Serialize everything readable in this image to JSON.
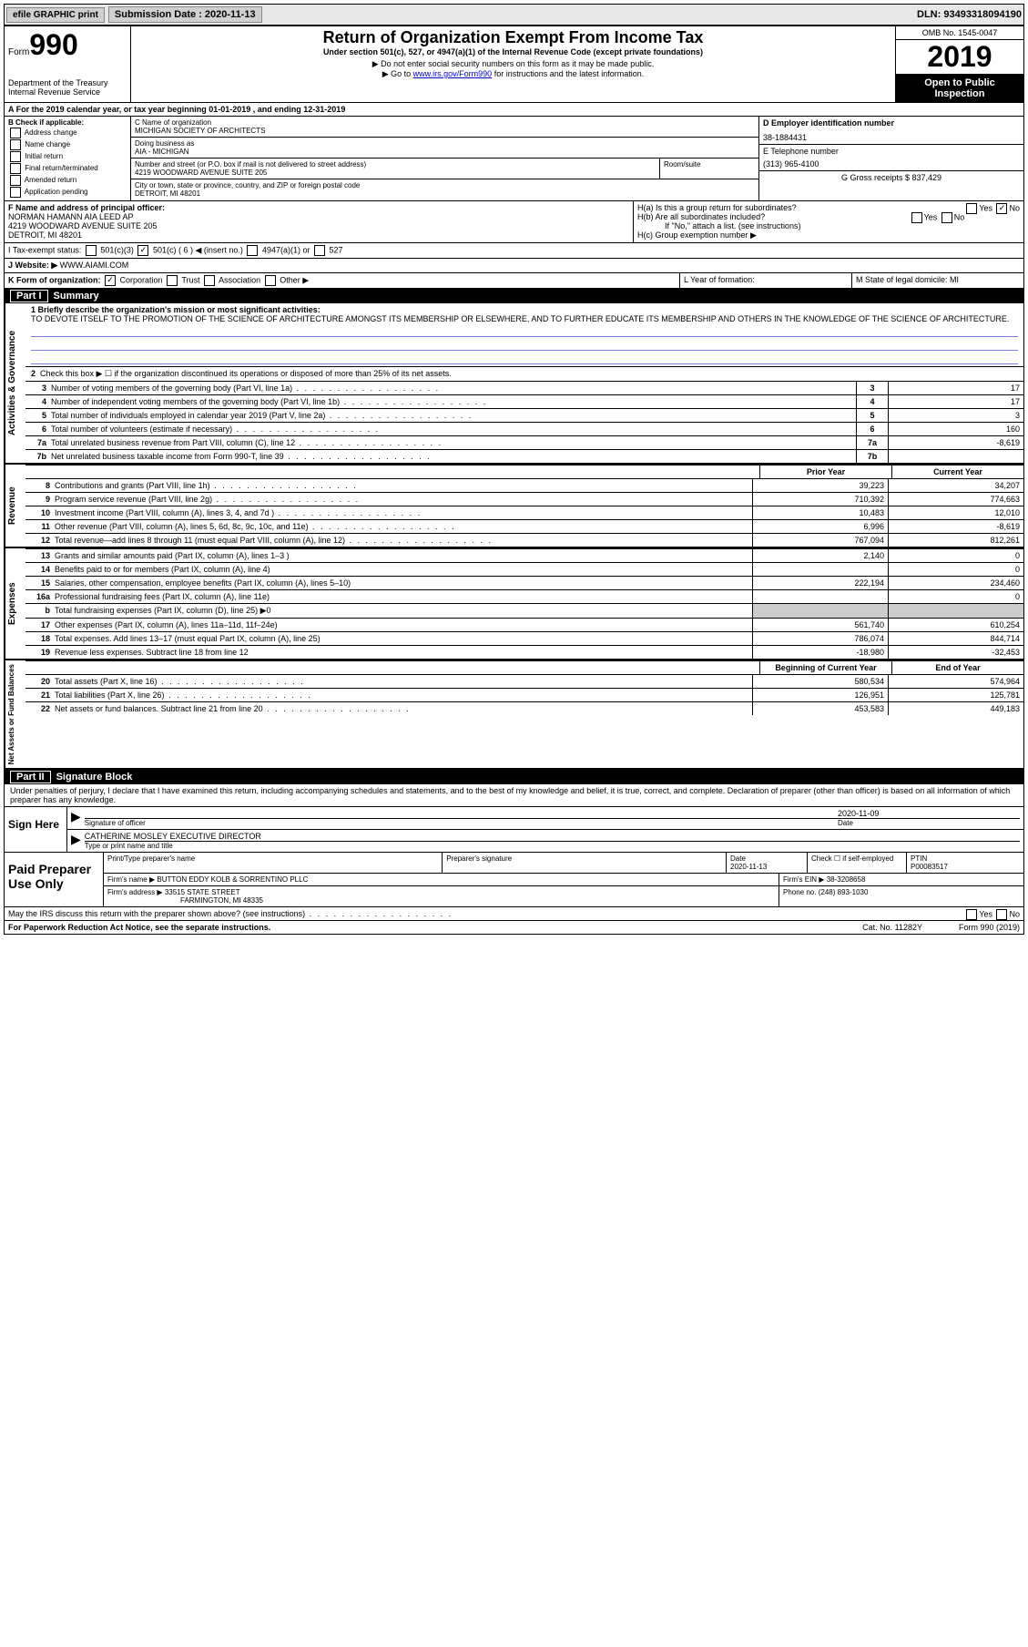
{
  "topbar": {
    "efile_label": "efile GRAPHIC print",
    "submission_label": "Submission Date : 2020-11-13",
    "dln_label": "DLN: 93493318094190"
  },
  "header": {
    "form_prefix": "Form",
    "form_number": "990",
    "dept": "Department of the Treasury\nInternal Revenue Service",
    "title": "Return of Organization Exempt From Income Tax",
    "subtitle": "Under section 501(c), 527, or 4947(a)(1) of the Internal Revenue Code (except private foundations)",
    "note1": "▶ Do not enter social security numbers on this form as it may be made public.",
    "note2_pre": "▶ Go to ",
    "note2_link": "www.irs.gov/Form990",
    "note2_post": " for instructions and the latest information.",
    "omb": "OMB No. 1545-0047",
    "year": "2019",
    "pub": "Open to Public Inspection"
  },
  "line_a": "A For the 2019 calendar year, or tax year beginning 01-01-2019    , and ending 12-31-2019",
  "col_b": {
    "header": "B Check if applicable:",
    "items": [
      "Address change",
      "Name change",
      "Initial return",
      "Final return/terminated",
      "Amended return",
      "Application pending"
    ]
  },
  "col_c": {
    "name_label": "C Name of organization",
    "name": "MICHIGAN SOCIETY OF ARCHITECTS",
    "dba_label": "Doing business as",
    "dba": "AIA - MICHIGAN",
    "addr_label": "Number and street (or P.O. box if mail is not delivered to street address)",
    "room_label": "Room/suite",
    "addr": "4219 WOODWARD AVENUE SUITE 205",
    "city_label": "City or town, state or province, country, and ZIP or foreign postal code",
    "city": "DETROIT, MI  48201"
  },
  "col_de": {
    "d_label": "D Employer identification number",
    "d_val": "38-1884431",
    "e_label": "E Telephone number",
    "e_val": "(313) 965-4100",
    "g_label": "G Gross receipts $ 837,429"
  },
  "section_f": {
    "label": "F  Name and address of principal officer:",
    "name": "NORMAN HAMANN AIA LEED AP",
    "addr1": "4219 WOODWARD AVENUE SUITE 205",
    "addr2": "DETROIT, MI  48201"
  },
  "section_h": {
    "ha": "H(a)  Is this a group return for subordinates?",
    "hb": "H(b)  Are all subordinates included?",
    "hb_note": "If \"No,\" attach a list. (see instructions)",
    "hc": "H(c)  Group exemption number ▶"
  },
  "line_i": {
    "label": "I    Tax-exempt status:",
    "o1": "501(c)(3)",
    "o2_pre": "501(c) ( 6 ) ◀ (insert no.)",
    "o3": "4947(a)(1) or",
    "o4": "527"
  },
  "line_j": {
    "label": "J    Website: ▶",
    "val": "WWW.AIAMI.COM"
  },
  "line_k": {
    "label": "K Form of organization:",
    "o1": "Corporation",
    "o2": "Trust",
    "o3": "Association",
    "o4": "Other ▶"
  },
  "line_l": {
    "label": "L Year of formation:"
  },
  "line_m": {
    "label": "M State of legal domicile: MI"
  },
  "part1": {
    "header_tab": "Part I",
    "header": "Summary",
    "side_ag": "Activities & Governance",
    "side_rev": "Revenue",
    "side_exp": "Expenses",
    "side_na": "Net Assets or Fund Balances",
    "line1_label": "1  Briefly describe the organization's mission or most significant activities:",
    "line1_text": "TO DEVOTE ITSELF TO THE PROMOTION OF THE SCIENCE OF ARCHITECTURE AMONGST ITS MEMBERSHIP OR ELSEWHERE, AND TO FURTHER EDUCATE ITS MEMBERSHIP AND OTHERS IN THE KNOWLEDGE OF THE SCIENCE OF ARCHITECTURE.",
    "line2": "Check this box ▶ ☐  if the organization discontinued its operations or disposed of more than 25% of its net assets.",
    "rows": [
      {
        "n": "3",
        "t": "Number of voting members of the governing body (Part VI, line 1a)",
        "v": "17"
      },
      {
        "n": "4",
        "t": "Number of independent voting members of the governing body (Part VI, line 1b)",
        "v": "17"
      },
      {
        "n": "5",
        "t": "Total number of individuals employed in calendar year 2019 (Part V, line 2a)",
        "v": "3"
      },
      {
        "n": "6",
        "t": "Total number of volunteers (estimate if necessary)",
        "v": "160"
      },
      {
        "n": "7a",
        "t": "Total unrelated business revenue from Part VIII, column (C), line 12",
        "v": "-8,619"
      },
      {
        "n": "7b",
        "t": "Net unrelated business taxable income from Form 990-T, line 39",
        "v": ""
      }
    ],
    "py_header": "Prior Year",
    "cy_header": "Current Year",
    "rev_rows": [
      {
        "n": "8",
        "t": "Contributions and grants (Part VIII, line 1h)",
        "py": "39,223",
        "cy": "34,207"
      },
      {
        "n": "9",
        "t": "Program service revenue (Part VIII, line 2g)",
        "py": "710,392",
        "cy": "774,663"
      },
      {
        "n": "10",
        "t": "Investment income (Part VIII, column (A), lines 3, 4, and 7d )",
        "py": "10,483",
        "cy": "12,010"
      },
      {
        "n": "11",
        "t": "Other revenue (Part VIII, column (A), lines 5, 6d, 8c, 9c, 10c, and 11e)",
        "py": "6,996",
        "cy": "-8,619"
      },
      {
        "n": "12",
        "t": "Total revenue—add lines 8 through 11 (must equal Part VIII, column (A), line 12)",
        "py": "767,094",
        "cy": "812,261"
      }
    ],
    "exp_rows": [
      {
        "n": "13",
        "t": "Grants and similar amounts paid (Part IX, column (A), lines 1–3 )",
        "py": "2,140",
        "cy": "0"
      },
      {
        "n": "14",
        "t": "Benefits paid to or for members (Part IX, column (A), line 4)",
        "py": "",
        "cy": "0"
      },
      {
        "n": "15",
        "t": "Salaries, other compensation, employee benefits (Part IX, column (A), lines 5–10)",
        "py": "222,194",
        "cy": "234,460"
      },
      {
        "n": "16a",
        "t": "Professional fundraising fees (Part IX, column (A), line 11e)",
        "py": "",
        "cy": "0"
      },
      {
        "n": "b",
        "t": "Total fundraising expenses (Part IX, column (D), line 25) ▶0",
        "py": "",
        "cy": "",
        "shade": true
      },
      {
        "n": "17",
        "t": "Other expenses (Part IX, column (A), lines 11a–11d, 11f–24e)",
        "py": "561,740",
        "cy": "610,254"
      },
      {
        "n": "18",
        "t": "Total expenses. Add lines 13–17 (must equal Part IX, column (A), line 25)",
        "py": "786,074",
        "cy": "844,714"
      },
      {
        "n": "19",
        "t": "Revenue less expenses. Subtract line 18 from line 12",
        "py": "-18,980",
        "cy": "-32,453"
      }
    ],
    "na_py": "Beginning of Current Year",
    "na_cy": "End of Year",
    "na_rows": [
      {
        "n": "20",
        "t": "Total assets (Part X, line 16)",
        "py": "580,534",
        "cy": "574,964"
      },
      {
        "n": "21",
        "t": "Total liabilities (Part X, line 26)",
        "py": "126,951",
        "cy": "125,781"
      },
      {
        "n": "22",
        "t": "Net assets or fund balances. Subtract line 21 from line 20",
        "py": "453,583",
        "cy": "449,183"
      }
    ]
  },
  "part2": {
    "header_tab": "Part II",
    "header": "Signature Block",
    "declaration": "Under penalties of perjury, I declare that I have examined this return, including accompanying schedules and statements, and to the best of my knowledge and belief, it is true, correct, and complete. Declaration of preparer (other than officer) is based on all information of which preparer has any knowledge.",
    "sign_here": "Sign Here",
    "sig_officer": "Signature of officer",
    "sig_date": "2020-11-09",
    "sig_date_label": "Date",
    "sig_name": "CATHERINE MOSLEY  EXECUTIVE DIRECTOR",
    "sig_name_label": "Type or print name and title",
    "paid": "Paid Preparer Use Only",
    "p_name_label": "Print/Type preparer's name",
    "p_sig_label": "Preparer's signature",
    "p_date_label": "Date",
    "p_date": "2020-11-13",
    "p_check": "Check ☐ if self-employed",
    "p_ptin_label": "PTIN",
    "p_ptin": "P00083517",
    "firm_name_label": "Firm's name    ▶",
    "firm_name": "BUTTON EDDY KOLB & SORRENTINO PLLC",
    "firm_ein_label": "Firm's EIN ▶",
    "firm_ein": "38-3208658",
    "firm_addr_label": "Firm's address ▶",
    "firm_addr1": "33515 STATE STREET",
    "firm_addr2": "FARMINGTON, MI  48335",
    "firm_phone_label": "Phone no.",
    "firm_phone": "(248) 893-1030",
    "discuss": "May the IRS discuss this return with the preparer shown above? (see instructions)"
  },
  "footer": {
    "left": "For Paperwork Reduction Act Notice, see the separate instructions.",
    "mid": "Cat. No. 11282Y",
    "right": "Form 990 (2019)"
  }
}
